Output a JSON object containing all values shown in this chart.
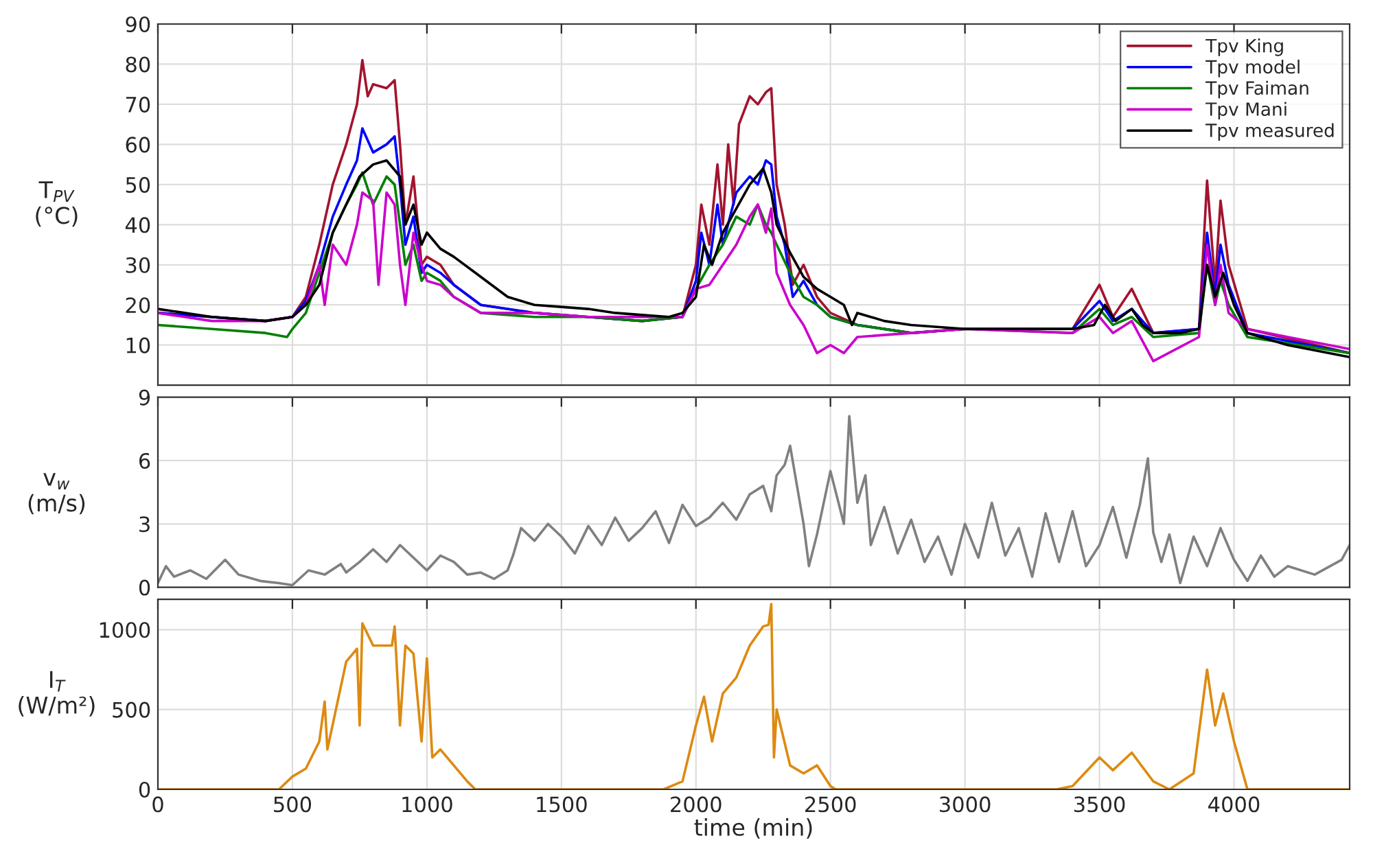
{
  "chart_data": [
    {
      "type": "line",
      "ylabel": "T$_{PV}$\n(°C)",
      "xlim": [
        0,
        4430
      ],
      "xticks": [
        0,
        500,
        1000,
        1500,
        2000,
        2500,
        3000,
        3500,
        4000
      ],
      "ylim": [
        0,
        90
      ],
      "yticks": [
        10,
        20,
        30,
        40,
        50,
        60,
        70,
        80,
        90
      ],
      "grid": true,
      "legend": "top right",
      "tick_labels": "y",
      "series": [
        {
          "name": "Tpv King",
          "color": "#a2142f",
          "x": [
            0,
            400,
            500,
            550,
            600,
            650,
            700,
            740,
            760,
            780,
            800,
            850,
            880,
            900,
            920,
            950,
            980,
            1000,
            1050,
            1100,
            1200,
            1400,
            1600,
            1800,
            1950,
            2000,
            2020,
            2050,
            2080,
            2100,
            2120,
            2140,
            2160,
            2200,
            2230,
            2260,
            2280,
            2300,
            2330,
            2360,
            2400,
            2450,
            2500,
            2600,
            2800,
            3000,
            3400,
            3500,
            3550,
            3620,
            3700,
            3870,
            3900,
            3930,
            3950,
            3980,
            4050,
            4430
          ],
          "values": [
            18,
            16,
            17,
            22,
            35,
            50,
            60,
            70,
            81,
            72,
            75,
            74,
            76,
            60,
            40,
            52,
            30,
            32,
            30,
            25,
            20,
            18,
            17,
            16,
            17,
            30,
            45,
            35,
            55,
            40,
            60,
            45,
            65,
            72,
            70,
            73,
            74,
            50,
            40,
            25,
            30,
            22,
            18,
            15,
            13,
            14,
            14,
            25,
            17,
            24,
            13,
            14,
            51,
            25,
            46,
            30,
            14,
            8
          ]
        },
        {
          "name": "Tpv model",
          "color": "#0000ff",
          "x": [
            0,
            400,
            500,
            550,
            600,
            650,
            700,
            740,
            760,
            800,
            850,
            880,
            900,
            920,
            950,
            980,
            1000,
            1050,
            1100,
            1200,
            1400,
            1600,
            1800,
            1950,
            2000,
            2020,
            2050,
            2080,
            2100,
            2150,
            2200,
            2230,
            2260,
            2280,
            2300,
            2330,
            2360,
            2400,
            2450,
            2500,
            2600,
            2800,
            3000,
            3400,
            3500,
            3550,
            3620,
            3700,
            3870,
            3900,
            3930,
            3950,
            3980,
            4050,
            4430
          ],
          "values": [
            18,
            16,
            17,
            21,
            30,
            42,
            50,
            56,
            64,
            58,
            60,
            62,
            50,
            35,
            42,
            28,
            30,
            28,
            25,
            20,
            18,
            17,
            16,
            17,
            26,
            38,
            30,
            45,
            35,
            48,
            52,
            50,
            56,
            55,
            42,
            35,
            22,
            26,
            20,
            17,
            15,
            13,
            14,
            14,
            21,
            16,
            19,
            13,
            14,
            38,
            22,
            35,
            25,
            13,
            8
          ]
        },
        {
          "name": "Tpv Faiman",
          "color": "#008000",
          "x": [
            0,
            200,
            400,
            480,
            500,
            550,
            600,
            650,
            700,
            740,
            760,
            800,
            850,
            880,
            900,
            920,
            950,
            980,
            1000,
            1050,
            1100,
            1200,
            1400,
            1600,
            1800,
            1950,
            2000,
            2050,
            2100,
            2150,
            2200,
            2230,
            2260,
            2280,
            2300,
            2350,
            2400,
            2450,
            2500,
            2600,
            2800,
            3000,
            3400,
            3500,
            3550,
            3620,
            3700,
            3870,
            3900,
            3930,
            3950,
            3980,
            4050,
            4430
          ],
          "values": [
            15,
            14,
            13,
            12,
            14,
            18,
            28,
            38,
            45,
            50,
            53,
            45,
            52,
            50,
            40,
            30,
            35,
            26,
            28,
            26,
            22,
            18,
            17,
            17,
            16,
            17,
            24,
            30,
            35,
            42,
            40,
            45,
            40,
            38,
            35,
            28,
            22,
            20,
            17,
            15,
            13,
            14,
            13,
            19,
            15,
            17,
            12,
            13,
            30,
            20,
            26,
            20,
            12,
            8
          ]
        },
        {
          "name": "Tpv Mani",
          "color": "#cc00cc",
          "x": [
            0,
            200,
            400,
            500,
            550,
            600,
            620,
            650,
            700,
            740,
            760,
            800,
            820,
            850,
            880,
            900,
            920,
            950,
            980,
            1000,
            1050,
            1100,
            1200,
            1400,
            1600,
            1800,
            1950,
            2000,
            2050,
            2100,
            2150,
            2200,
            2230,
            2260,
            2280,
            2300,
            2350,
            2400,
            2450,
            2500,
            2550,
            2600,
            2800,
            3000,
            3400,
            3500,
            3550,
            3620,
            3700,
            3870,
            3900,
            3930,
            3950,
            3980,
            4050,
            4200,
            4430
          ],
          "values": [
            18,
            16,
            16,
            17,
            20,
            30,
            20,
            35,
            30,
            40,
            48,
            46,
            25,
            48,
            45,
            30,
            20,
            38,
            30,
            26,
            25,
            22,
            18,
            18,
            17,
            17,
            17,
            24,
            25,
            30,
            35,
            42,
            45,
            38,
            44,
            28,
            20,
            15,
            8,
            10,
            8,
            12,
            13,
            14,
            13,
            17,
            13,
            16,
            6,
            12,
            35,
            20,
            30,
            18,
            14,
            12,
            9
          ]
        },
        {
          "name": "Tpv measured",
          "color": "#000000",
          "x": [
            0,
            200,
            400,
            500,
            550,
            600,
            650,
            700,
            750,
            800,
            850,
            900,
            920,
            950,
            980,
            1000,
            1050,
            1100,
            1200,
            1300,
            1400,
            1500,
            1600,
            1700,
            1800,
            1900,
            1950,
            2000,
            2030,
            2060,
            2100,
            2150,
            2200,
            2250,
            2280,
            2300,
            2350,
            2400,
            2450,
            2500,
            2550,
            2580,
            2600,
            2700,
            2800,
            3000,
            3200,
            3400,
            3480,
            3520,
            3560,
            3620,
            3660,
            3700,
            3800,
            3870,
            3900,
            3930,
            3960,
            4000,
            4050,
            4200,
            4430
          ],
          "values": [
            19,
            17,
            16,
            17,
            20,
            25,
            38,
            45,
            52,
            55,
            56,
            52,
            40,
            45,
            35,
            38,
            34,
            32,
            27,
            22,
            20,
            19.5,
            19,
            18,
            17.5,
            17,
            18,
            22,
            35,
            30,
            38,
            44,
            50,
            54,
            48,
            40,
            33,
            27,
            24,
            22,
            20,
            15,
            18,
            16,
            15,
            14,
            14,
            14,
            15,
            20,
            16,
            19,
            15,
            13,
            13,
            14,
            30,
            22,
            28,
            20,
            13,
            10,
            7
          ]
        }
      ]
    },
    {
      "type": "line",
      "ylabel": "v$_{w}$\n(m/s)",
      "xlim": [
        0,
        4430
      ],
      "xticks": [
        0,
        500,
        1000,
        1500,
        2000,
        2500,
        3000,
        3500,
        4000
      ],
      "ylim": [
        0,
        9
      ],
      "yticks": [
        0,
        3,
        6,
        9
      ],
      "grid": true,
      "tick_labels": "y",
      "series": [
        {
          "color": "#808080",
          "x": [
            0,
            30,
            60,
            120,
            180,
            250,
            300,
            380,
            450,
            500,
            560,
            620,
            680,
            700,
            750,
            800,
            850,
            900,
            950,
            1000,
            1050,
            1100,
            1150,
            1200,
            1250,
            1300,
            1320,
            1350,
            1400,
            1450,
            1500,
            1550,
            1600,
            1650,
            1700,
            1750,
            1800,
            1850,
            1900,
            1950,
            2000,
            2050,
            2100,
            2150,
            2200,
            2250,
            2280,
            2300,
            2330,
            2350,
            2400,
            2420,
            2450,
            2500,
            2550,
            2570,
            2600,
            2630,
            2650,
            2700,
            2750,
            2800,
            2850,
            2900,
            2950,
            3000,
            3050,
            3100,
            3150,
            3200,
            3250,
            3300,
            3350,
            3400,
            3450,
            3500,
            3550,
            3600,
            3650,
            3680,
            3700,
            3730,
            3760,
            3800,
            3850,
            3900,
            3950,
            4000,
            4050,
            4100,
            4150,
            4200,
            4300,
            4400,
            4430
          ],
          "values": [
            0.2,
            1.0,
            0.5,
            0.8,
            0.4,
            1.3,
            0.6,
            0.3,
            0.2,
            0.1,
            0.8,
            0.6,
            1.1,
            0.7,
            1.2,
            1.8,
            1.2,
            2.0,
            1.4,
            0.8,
            1.5,
            1.2,
            0.6,
            0.7,
            0.4,
            0.8,
            1.5,
            2.8,
            2.2,
            3.0,
            2.4,
            1.6,
            2.9,
            2.0,
            3.3,
            2.2,
            2.8,
            3.6,
            2.1,
            3.9,
            2.9,
            3.3,
            4.0,
            3.2,
            4.4,
            4.8,
            3.6,
            5.3,
            5.8,
            6.7,
            3.0,
            1.0,
            2.5,
            5.5,
            3.0,
            8.1,
            4.0,
            5.3,
            2.0,
            3.8,
            1.6,
            3.2,
            1.2,
            2.4,
            0.6,
            3.0,
            1.4,
            4.0,
            1.5,
            2.8,
            0.5,
            3.5,
            1.2,
            3.6,
            1.0,
            2.0,
            3.8,
            1.4,
            3.9,
            6.1,
            2.6,
            1.2,
            2.5,
            0.2,
            2.4,
            1.0,
            2.8,
            1.3,
            0.3,
            1.5,
            0.5,
            1.0,
            0.6,
            1.3,
            2.0
          ]
        }
      ]
    },
    {
      "type": "line",
      "ylabel": "I$_{T}$\n(W/m²)",
      "xlabel": "time (min)",
      "xlim": [
        0,
        4430
      ],
      "xticks": [
        0,
        500,
        1000,
        1500,
        2000,
        2500,
        3000,
        3500,
        4000
      ],
      "ylim": [
        0,
        1190
      ],
      "yticks": [
        0,
        500,
        1000
      ],
      "grid": true,
      "series": [
        {
          "color": "#dd8a10",
          "x": [
            0,
            450,
            500,
            550,
            600,
            620,
            630,
            700,
            740,
            750,
            760,
            800,
            870,
            880,
            900,
            920,
            950,
            980,
            1000,
            1020,
            1050,
            1100,
            1150,
            1180,
            1880,
            1950,
            2000,
            2030,
            2060,
            2100,
            2150,
            2200,
            2250,
            2270,
            2280,
            2290,
            2300,
            2350,
            2400,
            2450,
            2500,
            2520,
            3340,
            3400,
            3500,
            3550,
            3620,
            3700,
            3760,
            3850,
            3900,
            3930,
            3960,
            4000,
            4050,
            4430
          ],
          "values": [
            0,
            0,
            80,
            130,
            300,
            550,
            250,
            800,
            880,
            400,
            1040,
            900,
            900,
            1020,
            400,
            900,
            850,
            300,
            820,
            200,
            250,
            150,
            50,
            0,
            0,
            50,
            400,
            580,
            300,
            600,
            700,
            900,
            1020,
            1030,
            1160,
            200,
            500,
            150,
            100,
            150,
            20,
            0,
            0,
            20,
            200,
            120,
            230,
            50,
            0,
            100,
            750,
            400,
            600,
            300,
            0,
            0
          ]
        }
      ]
    }
  ]
}
